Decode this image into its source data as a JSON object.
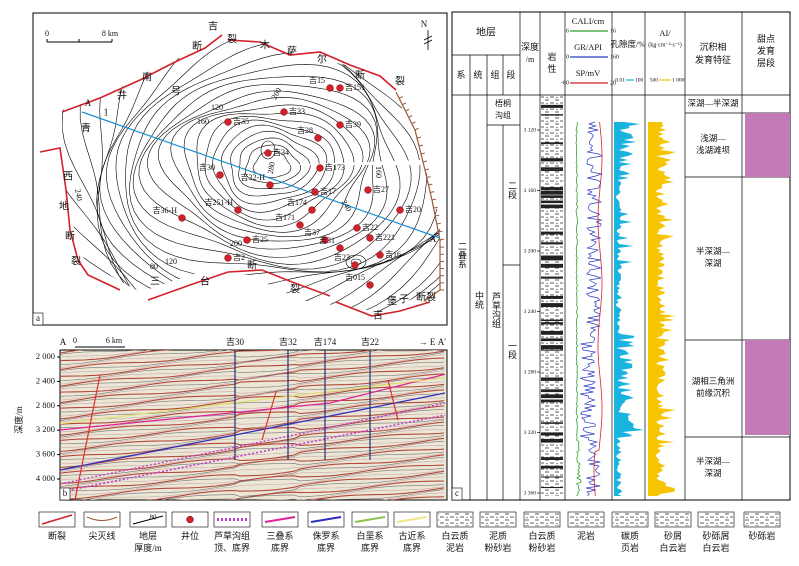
{
  "map": {
    "panel_label": "a",
    "scale_zero": "0",
    "scale_km": "8 km",
    "north": "N",
    "section_start": "A",
    "section_end": "A",
    "place_names": [
      "吉",
      "断",
      "裂",
      "木",
      "萨",
      "尔",
      "断",
      "裂",
      "南",
      "1",
      "号",
      "井",
      "青",
      "西",
      "地",
      "断",
      "裂",
      "三",
      "台",
      "断",
      "裂",
      "吉",
      "堡",
      "子",
      "断裂"
    ],
    "contour_labels": [
      "120",
      "160",
      "200",
      "280",
      "240",
      "160",
      "200",
      "120",
      "80",
      "240"
    ],
    "wells": [
      "吉15",
      "吉151",
      "吉33",
      "吉35",
      "吉39",
      "吉28",
      "吉34",
      "吉173",
      "吉30",
      "吉32-H",
      "吉17",
      "吉27",
      "吉251-H",
      "吉174",
      "吉20",
      "吉36-H",
      "吉171",
      "吉22",
      "吉25",
      "吉37",
      "吉221",
      "吉2",
      "吉31",
      "吉16",
      "吉23",
      "吉015"
    ]
  },
  "section": {
    "panel_label": "b",
    "start": "A",
    "end": "A′",
    "scale_zero": "0",
    "scale_km": "6 km",
    "direction": "→ E",
    "y_title": "深度/m",
    "y_ticks": [
      "2 000",
      "2 400",
      "2 800",
      "3 200",
      "3 600",
      "4 000"
    ],
    "wells": [
      "吉30",
      "吉32",
      "吉174",
      "吉22"
    ]
  },
  "log": {
    "panel_label": "c",
    "strata": "地层",
    "system": "系",
    "series": "统",
    "formation": "组",
    "member": "段",
    "depth": [
      "深度",
      "/m"
    ],
    "lithology": [
      "岩",
      "性"
    ],
    "cali": {
      "name": "CALI/cm",
      "min": "6",
      "max": "16"
    },
    "gr": {
      "name": "GR/API",
      "min": "0",
      "max": "160"
    },
    "sp": {
      "name": "SP/mV",
      "min": "-80",
      "max": "20"
    },
    "porosity": {
      "name": "孔隙度/%",
      "min": "0.01",
      "max": "100"
    },
    "ai": {
      "name": "AI/",
      "unit": "(kg·cm⁻²·s⁻¹)",
      "min": "500",
      "max": "1 000"
    },
    "facies_title": [
      "沉积相",
      "发育特征"
    ],
    "sweet_title": [
      "甜点",
      "发育",
      "层段"
    ],
    "system_name": "二叠系",
    "series_name": "中统",
    "formation_upper": [
      "梧桐",
      "沟组"
    ],
    "formation_lower": "芦草沟组",
    "member_2": "二段",
    "member_1": "一段",
    "depth_ticks": [
      "3 120",
      "3 160",
      "3 200",
      "3 240",
      "3 280",
      "3 320",
      "3 360"
    ],
    "facies": [
      [
        "深湖—半深湖"
      ],
      [
        "浅湖—",
        "浅湖滩坝"
      ],
      [
        "半深湖—",
        "深湖"
      ],
      [
        "湖相三角洲",
        "前缘沉积"
      ],
      [
        "半深湖—",
        "深湖"
      ]
    ]
  },
  "legend": [
    [
      "断裂"
    ],
    [
      "尖灭线"
    ],
    [
      "地层",
      "厚度/m"
    ],
    [
      "井位"
    ],
    [
      "芦草沟组",
      "顶、底界"
    ],
    [
      "三叠系",
      "底界"
    ],
    [
      "侏罗系",
      "底界"
    ],
    [
      "白垩系",
      "底界"
    ],
    [
      "古近系",
      "底界"
    ],
    [
      "白云质",
      "泥岩"
    ],
    [
      "泥质",
      "粉砂岩"
    ],
    [
      "白云质",
      "粉砂岩"
    ],
    [
      "泥岩"
    ],
    [
      "碳质",
      "页岩"
    ],
    [
      "砂屑",
      "白云岩"
    ],
    [
      "砂砾屑",
      "白云岩"
    ],
    [
      "砂砾岩"
    ]
  ],
  "legend_icon_label": "80"
}
